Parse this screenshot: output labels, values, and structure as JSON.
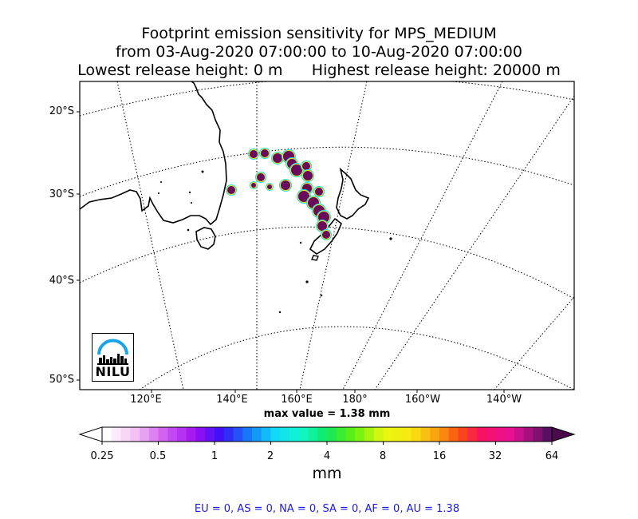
{
  "title": {
    "line1": "Footprint emission sensitivity for MPS_MEDIUM",
    "line2": "from 03-Aug-2020 07:00:00 to 10-Aug-2020 07:00:00",
    "line3": "Lowest release height: 0 m      Highest release height: 20000 m"
  },
  "map": {
    "lat_labels": [
      "20°S",
      "30°S",
      "40°S",
      "50°S"
    ],
    "lon_labels": [
      "120°E",
      "140°E",
      "160°E",
      "180°",
      "160°W",
      "140°W"
    ],
    "max_value_text": "max value = 1.38 mm"
  },
  "colorbar": {
    "tick_labels": [
      "0.25",
      "0.5",
      "1",
      "2",
      "4",
      "8",
      "16",
      "32",
      "64"
    ],
    "unit": "mm"
  },
  "logo": {
    "text": "NILU",
    "color": "#1aa3e8"
  },
  "footer": "EU = 0,  AS = 0,  NA = 0,  SA = 0,  AF = 0,  AU = 1.38"
}
